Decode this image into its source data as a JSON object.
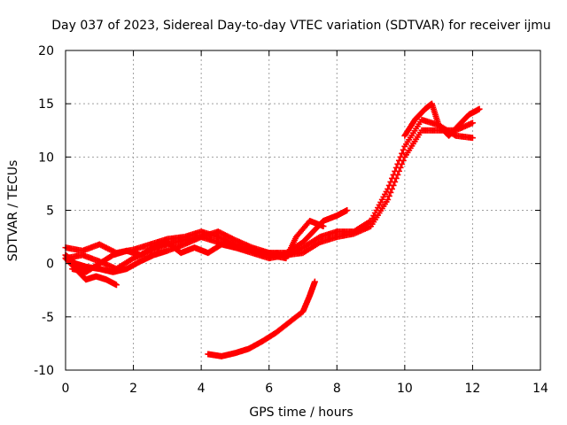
{
  "chart_data": {
    "type": "scatter",
    "title": "Day 037 of 2023, Sidereal Day-to-day VTEC variation (SDTVAR) for receiver ijmu",
    "xlabel": "GPS time / hours",
    "ylabel": "SDTVAR / TECUs",
    "xlim": [
      0,
      14
    ],
    "ylim": [
      -10,
      20
    ],
    "xticks": [
      "0",
      "2",
      "4",
      "6",
      "8",
      "10",
      "12",
      "14"
    ],
    "yticks": [
      "-10",
      "-5",
      "0",
      "5",
      "10",
      "15",
      "20"
    ],
    "grid": true,
    "marker": "+",
    "color": "#ff0000",
    "series": [
      {
        "x": [
          0.0,
          0.5,
          1.0,
          1.5,
          2.0,
          2.5,
          3.0,
          3.5,
          4.0,
          4.5,
          5.0,
          5.5,
          6.0,
          6.5,
          7.0,
          7.5,
          8.0,
          8.5,
          9.0,
          9.5,
          10.0,
          10.5,
          11.0,
          11.5,
          12.0
        ],
        "y": [
          1.5,
          1.2,
          1.8,
          1.0,
          1.3,
          1.8,
          2.3,
          2.5,
          3.0,
          2.5,
          1.8,
          1.2,
          1.0,
          0.8,
          1.5,
          2.5,
          3.0,
          3.0,
          4.0,
          7.0,
          11.0,
          13.5,
          13.0,
          12.0,
          11.8
        ]
      },
      {
        "x": [
          0.0,
          0.5,
          1.0,
          1.5,
          2.0,
          2.5,
          3.0,
          3.5,
          4.0,
          4.5,
          5.0,
          5.5,
          6.0,
          6.5,
          7.0,
          7.5,
          8.0,
          8.5,
          9.0,
          9.5,
          10.0,
          10.5,
          11.0,
          11.5,
          12.0
        ],
        "y": [
          0.5,
          0.8,
          0.2,
          -0.5,
          0.5,
          1.2,
          1.8,
          2.2,
          2.5,
          2.0,
          1.5,
          1.0,
          0.5,
          0.8,
          1.0,
          2.0,
          2.5,
          2.8,
          3.5,
          6.0,
          10.0,
          12.5,
          12.5,
          12.5,
          13.2
        ]
      },
      {
        "x": [
          0.0,
          0.3,
          0.6,
          1.0,
          1.4,
          1.8,
          2.2,
          2.6,
          3.0,
          3.5,
          4.0,
          4.5,
          5.0,
          5.5,
          6.0,
          6.5,
          7.0,
          7.3,
          7.6,
          8.0,
          8.3
        ],
        "y": [
          0.8,
          0.0,
          -0.3,
          -0.5,
          -0.8,
          -0.5,
          0.2,
          0.8,
          1.2,
          1.8,
          2.5,
          3.0,
          2.2,
          1.5,
          1.0,
          1.0,
          2.0,
          3.0,
          4.0,
          4.5,
          5.0
        ]
      },
      {
        "x": [
          0.0,
          0.3,
          0.6,
          0.9,
          1.2,
          1.5
        ],
        "y": [
          0.5,
          -0.5,
          -1.5,
          -1.2,
          -1.5,
          -2.0
        ]
      },
      {
        "x": [
          0.2,
          0.6,
          1.0,
          1.4,
          1.8,
          2.2,
          2.6,
          3.0,
          3.4,
          3.8,
          4.2,
          4.6,
          5.0,
          5.5,
          6.0,
          6.5,
          6.8,
          7.2,
          7.6
        ],
        "y": [
          -0.5,
          -0.8,
          0.0,
          0.8,
          1.2,
          0.8,
          1.5,
          2.0,
          1.0,
          1.5,
          1.0,
          1.8,
          1.5,
          1.2,
          0.8,
          0.5,
          2.5,
          4.0,
          3.5
        ]
      },
      {
        "x": [
          4.2,
          4.6,
          5.0,
          5.4,
          5.8,
          6.2,
          6.6,
          7.0,
          7.2,
          7.35
        ],
        "y": [
          -8.5,
          -8.7,
          -8.4,
          -8.0,
          -7.3,
          -6.5,
          -5.5,
          -4.5,
          -3.0,
          -1.7
        ]
      },
      {
        "x": [
          10.0,
          10.3,
          10.6,
          10.8,
          11.0,
          11.3,
          11.6,
          11.9,
          12.2
        ],
        "y": [
          12.0,
          13.5,
          14.5,
          15.0,
          13.0,
          12.0,
          13.0,
          14.0,
          14.5
        ]
      }
    ]
  }
}
